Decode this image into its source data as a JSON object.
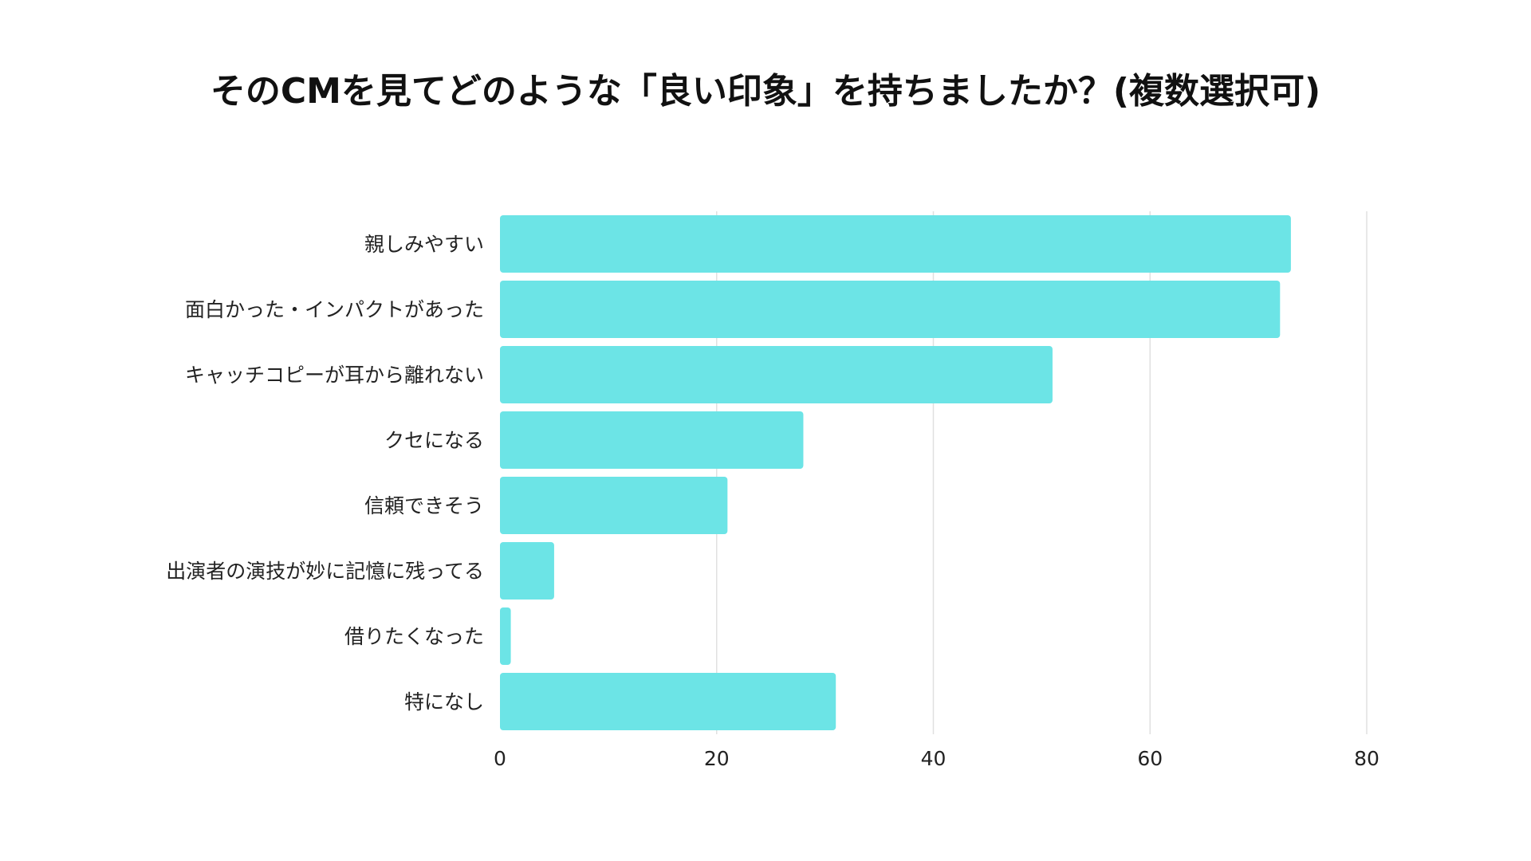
{
  "chart_data": {
    "type": "bar",
    "orientation": "horizontal",
    "title": "そのCMを見てどのような「良い印象」を持ちましたか？(複数選択可)",
    "categories": [
      "親しみやすい",
      "面白かった・インパクトがあった",
      "キャッチコピーが耳から離れない",
      "クセになる",
      "信頼できそう",
      "出演者の演技が妙に記憶に残ってる",
      "借りたくなった",
      "特になし"
    ],
    "values": [
      73,
      72,
      51,
      28,
      21,
      5,
      1,
      31
    ],
    "xlim": [
      0,
      80
    ],
    "xticks": [
      "0",
      "20",
      "40",
      "60",
      "80"
    ],
    "grid": true,
    "bar_color": "#6ce4e6"
  }
}
